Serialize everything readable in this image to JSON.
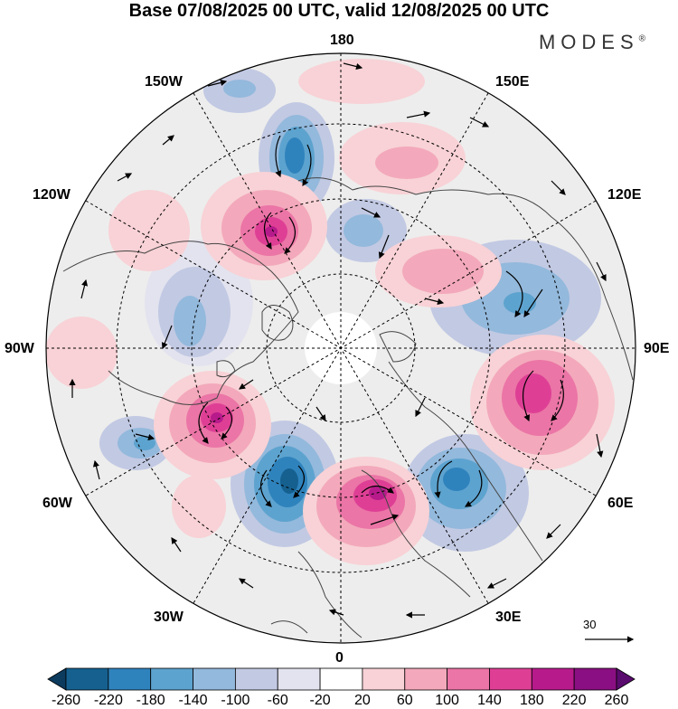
{
  "title": "Base 07/08/2025 00 UTC, valid 12/08/2025 00 UTC",
  "brand": "MODES",
  "brand_mark": "®",
  "longitude_labels": {
    "lon_180": "180",
    "lon_150w": "150W",
    "lon_150e": "150E",
    "lon_120w": "120W",
    "lon_120e": "120E",
    "lon_90w": "90W",
    "lon_90e": "90E",
    "lon_60w": "60W",
    "lon_60e": "60E",
    "lon_30w": "30W",
    "lon_30e": "30E",
    "lon_0": "0"
  },
  "reference_vector": "30",
  "colorbar": {
    "labels": [
      "-260",
      "-220",
      "-180",
      "-140",
      "-100",
      "-60",
      "-20",
      "20",
      "60",
      "100",
      "140",
      "180",
      "220",
      "260"
    ],
    "colors": [
      "#0c3b5e",
      "#15608f",
      "#2f83bd",
      "#5da3cf",
      "#93b9dc",
      "#c2c9e3",
      "#e3e3ef",
      "#ffffff",
      "#f8d2d6",
      "#f3a9bb",
      "#eb75a6",
      "#de3f95",
      "#b71a8b",
      "#8a0f82",
      "#5a0b6e"
    ]
  },
  "anomalies": [
    {
      "id": "neg-150w",
      "value": -140
    },
    {
      "id": "neg-130w",
      "value": -220
    },
    {
      "id": "pos-120w",
      "value": 220
    },
    {
      "id": "neg-160e",
      "value": -100
    },
    {
      "id": "pos-170e",
      "value": 60
    },
    {
      "id": "pos-150e",
      "value": 100
    },
    {
      "id": "neg-110e",
      "value": -100
    },
    {
      "id": "pos-80e",
      "value": 180
    },
    {
      "id": "neg-40e",
      "value": -180
    },
    {
      "id": "pos-20e",
      "value": 220
    },
    {
      "id": "neg-30w",
      "value": -220
    },
    {
      "id": "pos-60w",
      "value": 220
    },
    {
      "id": "neg-70w",
      "value": -140
    },
    {
      "id": "neg-100w",
      "value": -100
    }
  ]
}
